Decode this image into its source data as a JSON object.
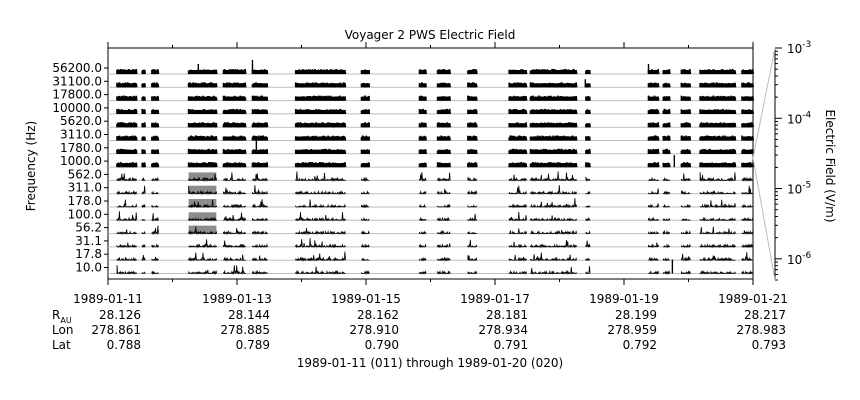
{
  "chart_data": {
    "type": "line",
    "title": "Voyager 2 PWS Electric Field",
    "ylabel": "Frequency (Hz)",
    "y2label": "Electric Field (V/m)",
    "footer": "1989-01-11 (011) through 1989-01-20 (020)",
    "channels": [
      "10.0",
      "17.8",
      "31.1",
      "56.2",
      "100.0",
      "178.0",
      "311.0",
      "562.0",
      "1000.0",
      "1780.0",
      "3110.0",
      "5620.0",
      "10000.0",
      "17800.0",
      "31100.0",
      "56200.0"
    ],
    "x_ticks": [
      "1989-01-11",
      "1989-01-13",
      "1989-01-15",
      "1989-01-17",
      "1989-01-19",
      "1989-01-21"
    ],
    "xlim": [
      "1989-01-11",
      "1989-01-21"
    ],
    "ephemeris": {
      "rows": [
        {
          "label": "R",
          "sub": "AU",
          "values": [
            "28.126",
            "28.144",
            "28.162",
            "28.181",
            "28.199",
            "28.217"
          ]
        },
        {
          "label": "Lon",
          "values": [
            "278.861",
            "278.885",
            "278.910",
            "278.934",
            "278.959",
            "278.983"
          ]
        },
        {
          "label": "Lat",
          "values": [
            "0.788",
            "0.789",
            "0.790",
            "0.791",
            "0.792",
            "0.793"
          ]
        }
      ]
    },
    "right_axis": {
      "scale": "log",
      "range": [
        5e-07,
        0.001
      ],
      "ticks": [
        {
          "value": 0.001,
          "base": "10",
          "exp": "-3"
        },
        {
          "value": 0.0001,
          "base": "10",
          "exp": "-4"
        },
        {
          "value": 1e-05,
          "base": "10",
          "exp": "-5"
        },
        {
          "value": 1e-06,
          "base": "10",
          "exp": "-6"
        }
      ]
    },
    "data_segments_days": [
      [
        0.14,
        0.44
      ],
      [
        0.53,
        0.58
      ],
      [
        0.68,
        0.78
      ],
      [
        1.25,
        1.68
      ],
      [
        1.79,
        2.13
      ],
      [
        2.24,
        2.47
      ],
      [
        2.91,
        3.68
      ],
      [
        3.93,
        4.06
      ],
      [
        4.83,
        4.94
      ],
      [
        5.11,
        5.31
      ],
      [
        5.58,
        5.72
      ],
      [
        6.22,
        6.49
      ],
      [
        6.55,
        7.27
      ],
      [
        7.41,
        7.48
      ],
      [
        8.38,
        8.53
      ],
      [
        8.61,
        8.71
      ],
      [
        8.89,
        9.03
      ],
      [
        9.18,
        9.72
      ],
      [
        9.83,
        9.95
      ],
      [
        9.94,
        10.0
      ]
    ],
    "grey_fill": {
      "segment": [
        1.25,
        1.68
      ],
      "channels": [
        "56.2",
        "100.0",
        "178.0",
        "311.0",
        "562.0"
      ]
    },
    "grid": true
  }
}
